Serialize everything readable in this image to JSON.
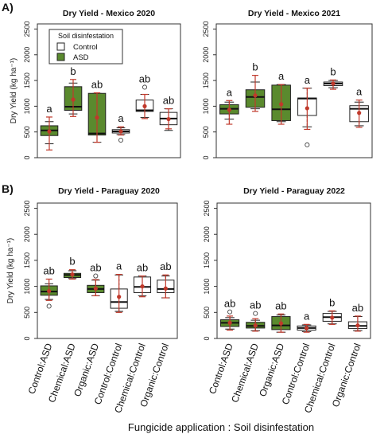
{
  "figure": {
    "section_a": "A)",
    "section_b": "B)",
    "xlabel": "Fungicide application : Soil disinfestation",
    "colors": {
      "asd_fill": "#5a8a2e",
      "control_fill": "#ffffff",
      "whisker": "#c0392b",
      "mean": "#c0392b"
    }
  },
  "chart_data": [
    {
      "type": "box",
      "title": "Dry Yield - Mexico 2020",
      "ylabel": "Dry Yield (kg ha⁻¹)",
      "ylim": [
        0,
        2600
      ],
      "yticks": [
        0,
        500,
        1000,
        1500,
        2000,
        2500
      ],
      "legend": {
        "title": "Soil disinfestation",
        "entries": [
          "Control",
          "ASD"
        ],
        "position": "top-left"
      },
      "categories": [],
      "groups": [
        {
          "category": "Control:ASD",
          "treatment": "ASD",
          "q1": 430,
          "median": 530,
          "q3": 620,
          "whisker_low": 270,
          "whisker_high": 700,
          "mean": 510,
          "err_low": 150,
          "err_high": 790,
          "outliers": [],
          "letter": "a"
        },
        {
          "category": "Chemical:ASD",
          "treatment": "ASD",
          "q1": 920,
          "median": 990,
          "q3": 1380,
          "whisker_low": 850,
          "whisker_high": 1450,
          "mean": 1130,
          "err_low": 800,
          "err_high": 1520,
          "outliers": [],
          "letter": "b"
        },
        {
          "category": "Organic:ASD",
          "treatment": "ASD",
          "q1": 440,
          "median": 470,
          "q3": 1250,
          "whisker_low": 300,
          "whisker_high": 1250,
          "mean": 780,
          "err_low": 300,
          "err_high": 1260,
          "outliers": [],
          "letter": "ab"
        },
        {
          "category": "Control:Control",
          "treatment": "Control",
          "q1": 480,
          "median": 510,
          "q3": 545,
          "whisker_low": 450,
          "whisker_high": 580,
          "mean": 510,
          "err_low": 440,
          "err_high": 600,
          "outliers": [
            340
          ],
          "letter": "a"
        },
        {
          "category": "Chemical:Control",
          "treatment": "Control",
          "q1": 900,
          "median": 920,
          "q3": 1120,
          "whisker_low": 780,
          "whisker_high": 1230,
          "mean": 1000,
          "err_low": 760,
          "err_high": 1230,
          "outliers": [
            1370
          ],
          "letter": "ab"
        },
        {
          "category": "Organic:Control",
          "treatment": "Control",
          "q1": 640,
          "median": 760,
          "q3": 880,
          "whisker_low": 530,
          "whisker_high": 950,
          "mean": 750,
          "err_low": 560,
          "err_high": 950,
          "outliers": [],
          "letter": "ab"
        }
      ]
    },
    {
      "type": "box",
      "title": "Dry Yield - Mexico 2021",
      "ylabel": "",
      "ylim": [
        0,
        2600
      ],
      "yticks": [
        0,
        500,
        1000,
        1500,
        2000,
        2500
      ],
      "categories": [],
      "groups": [
        {
          "category": "Control:ASD",
          "treatment": "ASD",
          "q1": 850,
          "median": 950,
          "q3": 1030,
          "whisker_low": 750,
          "whisker_high": 1080,
          "mean": 930,
          "err_low": 650,
          "err_high": 1110,
          "outliers": [],
          "letter": "a"
        },
        {
          "category": "Chemical:ASD",
          "treatment": "ASD",
          "q1": 980,
          "median": 1180,
          "q3": 1320,
          "whisker_low": 950,
          "whisker_high": 1470,
          "mean": 1210,
          "err_low": 900,
          "err_high": 1600,
          "outliers": [],
          "letter": "b"
        },
        {
          "category": "Organic:ASD",
          "treatment": "ASD",
          "q1": 720,
          "median": 940,
          "q3": 1410,
          "whisker_low": 700,
          "whisker_high": 1420,
          "mean": 1040,
          "err_low": 650,
          "err_high": 1420,
          "outliers": [],
          "letter": "a"
        },
        {
          "category": "Control:Control",
          "treatment": "Control",
          "q1": 820,
          "median": 1150,
          "q3": 1160,
          "whisker_low": 600,
          "whisker_high": 1350,
          "mean": 960,
          "err_low": 550,
          "err_high": 1350,
          "outliers": [
            250
          ],
          "letter": "a"
        },
        {
          "category": "Chemical:Control",
          "treatment": "Control",
          "q1": 1400,
          "median": 1440,
          "q3": 1470,
          "whisker_low": 1360,
          "whisker_high": 1500,
          "mean": 1440,
          "err_low": 1330,
          "err_high": 1510,
          "outliers": [],
          "letter": "b"
        },
        {
          "category": "Organic:Control",
          "treatment": "Control",
          "q1": 700,
          "median": 950,
          "q3": 1010,
          "whisker_low": 620,
          "whisker_high": 1080,
          "mean": 870,
          "err_low": 590,
          "err_high": 1120,
          "outliers": [],
          "letter": "a"
        }
      ]
    },
    {
      "type": "box",
      "title": "Dry Yield - Paraguay 2020",
      "ylabel": "Dry Yield (kg ha⁻¹)",
      "ylim": [
        0,
        2600
      ],
      "yticks": [
        0,
        500,
        1000,
        1500,
        2000,
        2500
      ],
      "categories": [
        "Control:ASD",
        "Chemical:ASD",
        "Organic:ASD",
        "Control:Control",
        "Chemical:Control",
        "Organic:Control"
      ],
      "groups": [
        {
          "category": "Control:ASD",
          "treatment": "ASD",
          "q1": 830,
          "median": 900,
          "q3": 1010,
          "whisker_low": 750,
          "whisker_high": 1050,
          "mean": 910,
          "err_low": 730,
          "err_high": 1140,
          "outliers": [
            620
          ],
          "letter": "ab"
        },
        {
          "category": "Chemical:ASD",
          "treatment": "ASD",
          "q1": 1170,
          "median": 1220,
          "q3": 1250,
          "whisker_low": 1150,
          "whisker_high": 1300,
          "mean": 1230,
          "err_low": 1140,
          "err_high": 1320,
          "outliers": [],
          "letter": "b"
        },
        {
          "category": "Organic:ASD",
          "treatment": "ASD",
          "q1": 880,
          "median": 950,
          "q3": 1020,
          "whisker_low": 820,
          "whisker_high": 1120,
          "mean": 960,
          "err_low": 820,
          "err_high": 1130,
          "outliers": [
            1200
          ],
          "letter": "ab"
        },
        {
          "category": "Control:Control",
          "treatment": "Control",
          "q1": 580,
          "median": 700,
          "q3": 950,
          "whisker_low": 520,
          "whisker_high": 1220,
          "mean": 800,
          "err_low": 500,
          "err_high": 1230,
          "outliers": [],
          "letter": "a"
        },
        {
          "category": "Chemical:Control",
          "treatment": "Control",
          "q1": 880,
          "median": 990,
          "q3": 1180,
          "whisker_low": 820,
          "whisker_high": 1200,
          "mean": 1000,
          "err_low": 800,
          "err_high": 1200,
          "outliers": [],
          "letter": "ab"
        },
        {
          "category": "Organic:Control",
          "treatment": "Control",
          "q1": 880,
          "median": 950,
          "q3": 1120,
          "whisker_low": 780,
          "whisker_high": 1200,
          "mean": 960,
          "err_low": 780,
          "err_high": 1220,
          "outliers": [],
          "letter": "ab"
        }
      ]
    },
    {
      "type": "box",
      "title": "Dry Yield - Paraguay 2022",
      "ylabel": "",
      "ylim": [
        0,
        2600
      ],
      "yticks": [
        0,
        500,
        1000,
        1500,
        2000,
        2500
      ],
      "categories": [
        "Control:ASD",
        "Chemical:ASD",
        "Organic:ASD",
        "Control:Control",
        "Chemical:Control",
        "Organic:Control"
      ],
      "groups": [
        {
          "category": "Control:ASD",
          "treatment": "ASD",
          "q1": 230,
          "median": 300,
          "q3": 360,
          "whisker_low": 180,
          "whisker_high": 400,
          "mean": 300,
          "err_low": 160,
          "err_high": 430,
          "outliers": [
            510
          ],
          "letter": "ab"
        },
        {
          "category": "Chemical:ASD",
          "treatment": "ASD",
          "q1": 200,
          "median": 240,
          "q3": 310,
          "whisker_low": 150,
          "whisker_high": 350,
          "mean": 250,
          "err_low": 140,
          "err_high": 380,
          "outliers": [
            480
          ],
          "letter": "ab"
        },
        {
          "category": "Organic:ASD",
          "treatment": "ASD",
          "q1": 170,
          "median": 250,
          "q3": 420,
          "whisker_low": 120,
          "whisker_high": 450,
          "mean": 290,
          "err_low": 120,
          "err_high": 470,
          "outliers": [],
          "letter": "ab"
        },
        {
          "category": "Control:Control",
          "treatment": "Control",
          "q1": 160,
          "median": 200,
          "q3": 240,
          "whisker_low": 130,
          "whisker_high": 260,
          "mean": 200,
          "err_low": 120,
          "err_high": 270,
          "outliers": [],
          "letter": "a"
        },
        {
          "category": "Chemical:Control",
          "treatment": "Control",
          "q1": 330,
          "median": 410,
          "q3": 480,
          "whisker_low": 280,
          "whisker_high": 520,
          "mean": 400,
          "err_low": 270,
          "err_high": 530,
          "outliers": [],
          "letter": "b"
        },
        {
          "category": "Organic:Control",
          "treatment": "Control",
          "q1": 190,
          "median": 240,
          "q3": 320,
          "whisker_low": 150,
          "whisker_high": 420,
          "mean": 250,
          "err_low": 140,
          "err_high": 430,
          "outliers": [],
          "letter": "ab"
        }
      ]
    }
  ]
}
